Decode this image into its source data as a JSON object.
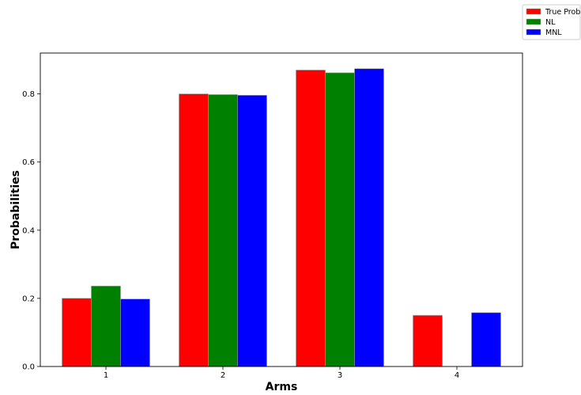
{
  "chart_data": {
    "type": "bar",
    "categories": [
      "1",
      "2",
      "3",
      "4"
    ],
    "series": [
      {
        "name": "True Prob",
        "color": "#ff0000",
        "values": [
          0.2,
          0.8,
          0.87,
          0.15
        ]
      },
      {
        "name": "NL",
        "color": "#008000",
        "values": [
          0.236,
          0.798,
          0.862,
          0
        ]
      },
      {
        "name": "MNL",
        "color": "#0000ff",
        "values": [
          0.198,
          0.796,
          0.874,
          0.158
        ]
      }
    ],
    "title": "",
    "xlabel": "Arms",
    "ylabel": "Probabilities",
    "ylim": [
      0,
      0.92
    ],
    "yticks": [
      0.0,
      0.2,
      0.4,
      0.6,
      0.8
    ],
    "ytick_labels": [
      "0.0",
      "0.2",
      "0.4",
      "0.6",
      "0.8"
    ],
    "grid": false,
    "legend_position": "top-right, outside plot"
  }
}
